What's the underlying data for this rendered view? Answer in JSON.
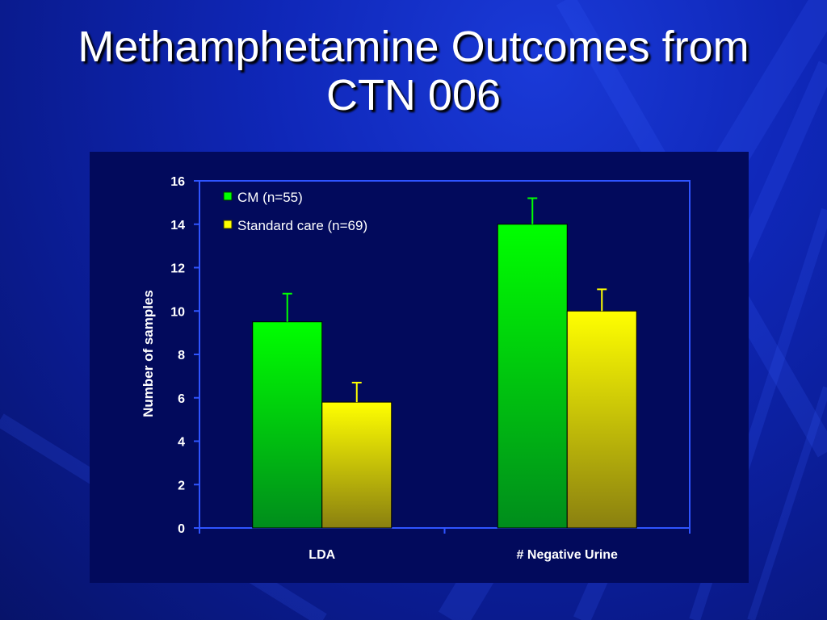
{
  "slide": {
    "title": "Methamphetamine Outcomes from CTN 006"
  },
  "colors": {
    "background": "#0f27b8",
    "panel": "#020a5c",
    "axis": "#2f54ff",
    "cm": "#00ff00",
    "standard": "#ffff00",
    "text": "#ffffff"
  },
  "chart_data": {
    "type": "bar",
    "title": "",
    "xlabel": "",
    "ylabel": "Number of samples",
    "ylim": [
      0,
      16
    ],
    "yticks": [
      0,
      2,
      4,
      6,
      8,
      10,
      12,
      14,
      16
    ],
    "grid": false,
    "legend_position": "top-left",
    "categories": [
      "LDA",
      "# Negative Urine"
    ],
    "series": [
      {
        "name": "CM (n=55)",
        "color": "#00ff00",
        "values": [
          9.5,
          14.0
        ],
        "error_upper": [
          10.8,
          15.2
        ]
      },
      {
        "name": "Standard care (n=69)",
        "color": "#ffff00",
        "values": [
          5.8,
          10.0
        ],
        "error_upper": [
          6.7,
          11.0
        ]
      }
    ]
  }
}
